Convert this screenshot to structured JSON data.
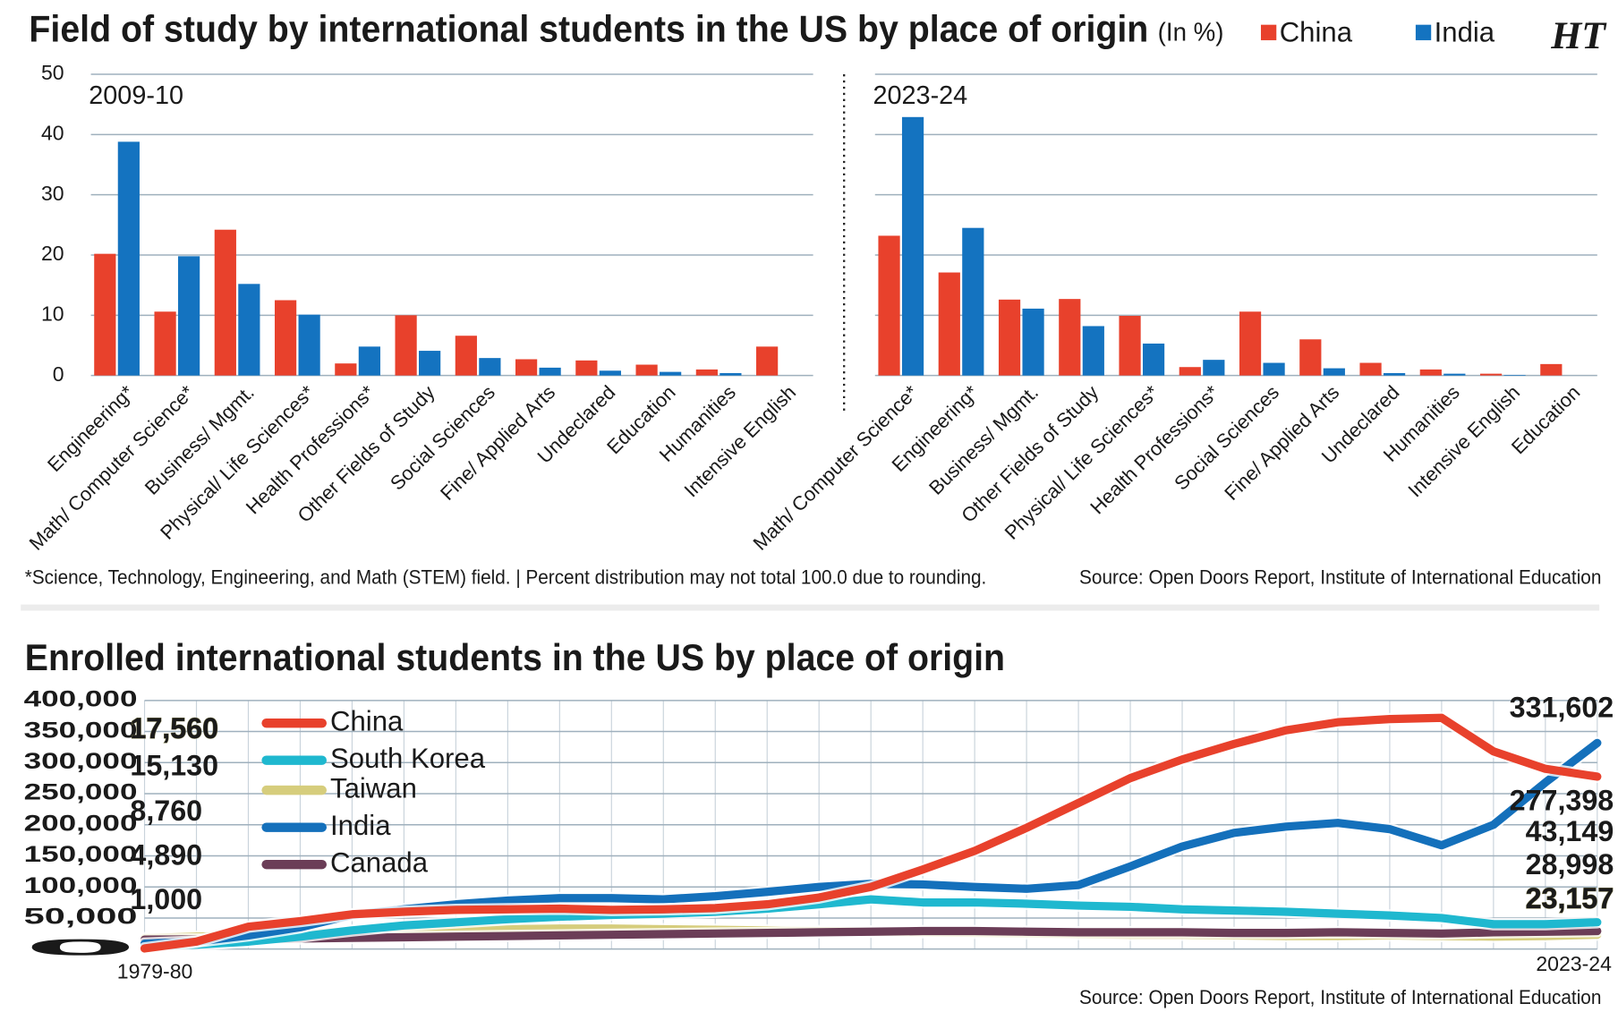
{
  "chart_data": [
    {
      "type": "bar",
      "title": "Field of study by international students in the US by place of origin",
      "unit": "(In %)",
      "logo": "HT",
      "panel": "2009-10",
      "categories": [
        "Engineering*",
        "Math/ Computer Science*",
        "Business/ Mgmt.",
        "Physical/ Life Sciences*",
        "Health Professions*",
        "Other Fields of Study",
        "Social Sciences",
        "Fine/ Applied Arts",
        "Undeclared",
        "Education",
        "Humanities",
        "Intensive English"
      ],
      "series": [
        {
          "name": "China",
          "color": "#e8412c",
          "values": [
            20.2,
            10.6,
            24.2,
            12.5,
            2.0,
            10.0,
            6.6,
            2.7,
            2.5,
            1.8,
            1.0,
            4.8
          ]
        },
        {
          "name": "India",
          "color": "#1473c0",
          "values": [
            38.8,
            19.8,
            15.2,
            10.1,
            4.8,
            4.1,
            2.9,
            1.3,
            0.8,
            0.6,
            0.4,
            0
          ]
        }
      ],
      "ylim": [
        0,
        50
      ],
      "yticks": [
        0,
        10,
        20,
        30,
        40,
        50
      ],
      "grid": true,
      "footnote": "*Science, Technology, Engineering, and Math (STEM) field. | Percent distribution may not total 100.0 due to rounding.",
      "source": "Source: Open Doors Report, Institute of International Education"
    },
    {
      "type": "bar",
      "panel": "2023-24",
      "categories": [
        "Math/ Computer Science*",
        "Engineering*",
        "Business/ Mgmt.",
        "Other Fields of Study",
        "Physical/ Life Sciences*",
        "Health Professions*",
        "Social Sciences",
        "Fine/ Applied Arts",
        "Undeclared",
        "Humanities",
        "Intensive English",
        "Education"
      ],
      "series": [
        {
          "color": "#e8412c",
          "values": [
            23.2,
            17.1,
            12.6,
            12.7,
            9.9,
            1.4,
            10.6,
            6.0,
            2.1,
            1.0,
            0.3,
            1.9
          ]
        },
        {
          "color": "#1473c0",
          "values": [
            42.9,
            24.5,
            11.1,
            8.2,
            5.3,
            2.6,
            2.1,
            1.2,
            0.4,
            0.3,
            0.1,
            0
          ]
        }
      ],
      "ylim": [
        0,
        50
      ],
      "yticks": [
        0,
        10,
        20,
        30,
        40,
        50
      ],
      "grid": true
    },
    {
      "type": "line",
      "title": "Enrolled international students in the US by place of origin",
      "categories": [
        "1979-80",
        null,
        null,
        null,
        null,
        null,
        null,
        null,
        null,
        null,
        null,
        null,
        null,
        null,
        null,
        null,
        null,
        null,
        null,
        null,
        null,
        null,
        null,
        null,
        null,
        null,
        null,
        null,
        "2023-24"
      ],
      "series": [
        {
          "name": "China",
          "color": "#e8412c",
          "values": [
            1000,
            12000,
            36000,
            45000,
            56000,
            60000,
            63000,
            64000,
            65000,
            63000,
            64000,
            66000,
            72000,
            83000,
            100000,
            128000,
            158000,
            195000,
            235000,
            275000,
            305000,
            330000,
            352000,
            365000,
            370000,
            372000,
            318000,
            290000,
            277398
          ],
          "value_labels": [
            "1,000",
            null,
            null,
            null,
            null,
            null,
            null,
            null,
            null,
            null,
            null,
            null,
            null,
            null,
            null,
            null,
            null,
            null,
            null,
            null,
            null,
            null,
            null,
            null,
            null,
            null,
            null,
            null,
            "277,398"
          ]
        },
        {
          "name": "South Korea",
          "color": "#1fb8cf",
          "values": [
            4890,
            7000,
            12000,
            20000,
            30000,
            38000,
            43000,
            48000,
            52000,
            55000,
            57000,
            60000,
            65000,
            72000,
            80000,
            75000,
            75000,
            73000,
            70000,
            68000,
            64000,
            62000,
            60000,
            57000,
            54000,
            50000,
            40000,
            40000,
            43149
          ],
          "value_labels": [
            "4,890",
            null,
            null,
            null,
            null,
            null,
            null,
            null,
            null,
            null,
            null,
            null,
            null,
            null,
            null,
            null,
            null,
            null,
            null,
            null,
            null,
            null,
            null,
            null,
            null,
            null,
            null,
            null,
            "43,149"
          ]
        },
        {
          "name": "Taiwan",
          "color": "#d6cd7c",
          "values": [
            17560,
            20000,
            22000,
            25000,
            28000,
            30000,
            31000,
            32000,
            33000,
            33000,
            32000,
            31000,
            30000,
            29000,
            28000,
            27000,
            26000,
            25000,
            24000,
            23000,
            23000,
            22000,
            21000,
            21000,
            22000,
            21000,
            20000,
            21000,
            23157
          ],
          "value_labels": [
            "17,560",
            null,
            null,
            null,
            null,
            null,
            null,
            null,
            null,
            null,
            null,
            null,
            null,
            null,
            null,
            null,
            null,
            null,
            null,
            null,
            null,
            null,
            null,
            null,
            null,
            null,
            null,
            null,
            "23,157"
          ]
        },
        {
          "name": "India",
          "color": "#1470bb",
          "values": [
            8760,
            12000,
            22000,
            35000,
            55000,
            64000,
            72000,
            78000,
            82000,
            82000,
            80000,
            85000,
            92000,
            100000,
            105000,
            104000,
            100000,
            97000,
            103000,
            133000,
            165000,
            187000,
            197000,
            203000,
            193000,
            167000,
            200000,
            268000,
            331602
          ],
          "value_labels": [
            "8,760",
            null,
            null,
            null,
            null,
            null,
            null,
            null,
            null,
            null,
            null,
            null,
            null,
            null,
            null,
            null,
            null,
            null,
            null,
            null,
            null,
            null,
            null,
            null,
            null,
            null,
            null,
            null,
            "331,602"
          ]
        },
        {
          "name": "Canada",
          "color": "#6b3d57",
          "values": [
            15130,
            15500,
            16000,
            17000,
            18000,
            19000,
            20000,
            21000,
            22000,
            23000,
            24000,
            25000,
            26000,
            27000,
            28000,
            29000,
            29000,
            28000,
            27000,
            27000,
            27000,
            26000,
            26000,
            27000,
            26000,
            25000,
            27000,
            28000,
            28998
          ],
          "value_labels": [
            "15,130",
            null,
            null,
            null,
            null,
            null,
            null,
            null,
            null,
            null,
            null,
            null,
            null,
            null,
            null,
            null,
            null,
            null,
            null,
            null,
            null,
            null,
            null,
            null,
            null,
            null,
            null,
            null,
            "28,998"
          ]
        }
      ],
      "ylim": [
        0,
        400000
      ],
      "yticks": [
        0,
        {
          "value": 50000,
          "label": "50,000"
        },
        {
          "value": 100000,
          "label": "100,000"
        },
        {
          "value": 150000,
          "label": "150,000"
        },
        {
          "value": 200000,
          "label": "200,000"
        },
        {
          "value": 250000,
          "label": "250,000"
        },
        {
          "value": 300000,
          "label": "300,000"
        },
        {
          "value": 350000,
          "label": "350,000"
        },
        {
          "value": 400000,
          "label": "400,000"
        }
      ],
      "grid": true,
      "source": "Source: Open Doors Report, Institute of International Education"
    }
  ]
}
